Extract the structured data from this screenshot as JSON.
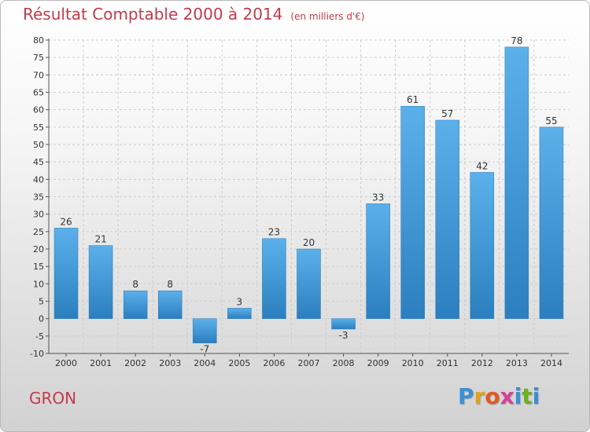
{
  "header": {
    "title": "Résultat Comptable 2000 à 2014",
    "unit": "(en milliers d'€)"
  },
  "footer": {
    "commune": "GRON",
    "brand_letters": [
      "P",
      "r",
      "o",
      "x",
      "i",
      "t",
      "i"
    ],
    "brand_colors": [
      "#3a8fd6",
      "#e0a020",
      "#e05a20",
      "#d6409a",
      "#3a8fd6",
      "#6ab020",
      "#3a8fd6"
    ]
  },
  "colors": {
    "bar_top": "#5cb0ea",
    "bar_bottom": "#2b7fbf",
    "title": "#c33a4a",
    "axis_text": "#333333",
    "grid": "#cccccc"
  },
  "chart_data": {
    "type": "bar",
    "title": "Résultat Comptable 2000 à 2014",
    "categories": [
      "2000",
      "2001",
      "2002",
      "2003",
      "2004",
      "2005",
      "2006",
      "2007",
      "2008",
      "2009",
      "2010",
      "2011",
      "2012",
      "2013",
      "2014"
    ],
    "values": [
      26,
      21,
      8,
      8,
      -7,
      3,
      23,
      20,
      -3,
      33,
      61,
      57,
      42,
      78,
      55
    ],
    "ylim": [
      -10,
      80
    ],
    "yticks": [
      -10,
      -5,
      0,
      5,
      10,
      15,
      20,
      25,
      30,
      35,
      40,
      45,
      50,
      55,
      60,
      65,
      70,
      75,
      80
    ],
    "grid": true,
    "xlabel": "",
    "ylabel": ""
  }
}
